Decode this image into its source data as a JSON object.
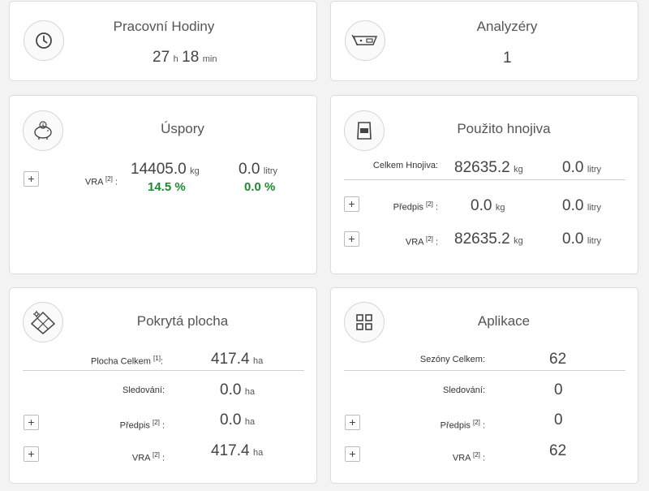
{
  "hours": {
    "title": "Pracovní Hodiny",
    "h": "27",
    "h_unit": "h",
    "m": "18",
    "m_unit": "min"
  },
  "analyzers": {
    "title": "Analyzéry",
    "count": "1"
  },
  "savings": {
    "title": "Úspory",
    "label": "VRA",
    "label_sup": "[2]",
    "kg": "14405.0",
    "kg_unit": "kg",
    "l": "0.0",
    "l_unit": "litry",
    "kg_pct": "14.5 %",
    "l_pct": "0.0 %"
  },
  "fert": {
    "title": "Použito hnojiva",
    "unit_kg": "kg",
    "unit_l": "litry",
    "rows": [
      {
        "label": "Celkem Hnojiva",
        "sup": "",
        "kg": "82635.2",
        "l": "0.0"
      },
      {
        "label": "Předpis",
        "sup": "[2]",
        "kg": "0.0",
        "l": "0.0"
      },
      {
        "label": "VRA",
        "sup": "[2]",
        "kg": "82635.2",
        "l": "0.0"
      }
    ]
  },
  "area": {
    "title": "Pokrytá plocha",
    "unit": "ha",
    "rows": [
      {
        "label": "Plocha Celkem",
        "sup": "[1]",
        "value": "417.4"
      },
      {
        "label": "Sledování",
        "sup": "",
        "value": "0.0"
      },
      {
        "label": "Předpis",
        "sup": "[2]",
        "value": "0.0"
      },
      {
        "label": "VRA",
        "sup": "[2]",
        "value": "417.4"
      }
    ]
  },
  "apps": {
    "title": "Aplikace",
    "rows": [
      {
        "label": "Sezóny Celkem",
        "sup": "",
        "value": "62"
      },
      {
        "label": "Sledování",
        "sup": "",
        "value": "0"
      },
      {
        "label": "Předpis",
        "sup": "[2]",
        "value": "0"
      },
      {
        "label": "VRA",
        "sup": "[2]",
        "value": "62"
      }
    ]
  },
  "icons": {
    "hours": "clock-icon",
    "analyzers": "analyzer-device-icon",
    "savings": "piggy-bank-icon",
    "fert": "fertilizer-bag-icon",
    "area": "field-map-icon",
    "apps": "grid-icon"
  },
  "colors": {
    "positive": "#1e8a2e"
  },
  "expand": "+",
  "sep": ":"
}
